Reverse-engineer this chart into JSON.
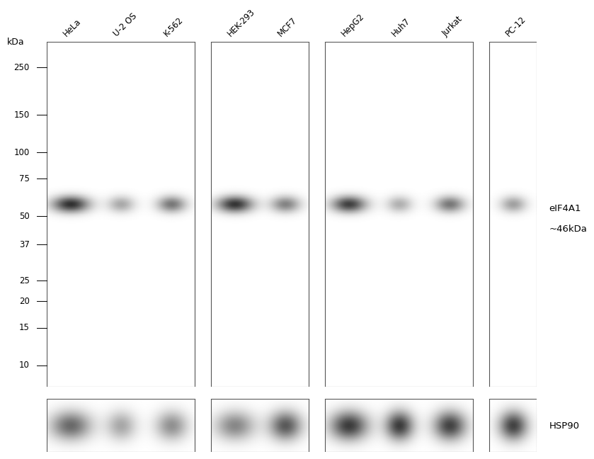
{
  "fig_width": 8.88,
  "fig_height": 7.11,
  "bg_color": "#ffffff",
  "lane_labels": [
    "HeLa",
    "U-2 OS",
    "K-562",
    "HEK-293",
    "MCF7",
    "HepG2",
    "Huh7",
    "Jurkat",
    "PC-12"
  ],
  "kda_markers": [
    250,
    150,
    100,
    75,
    50,
    37,
    25,
    20,
    15,
    10
  ],
  "kda_label": "kDa",
  "main_band_kda": 46,
  "group_configs": [
    {
      "n": 3,
      "lane_names": [
        "HeLa",
        "U-2 OS",
        "K-562"
      ]
    },
    {
      "n": 2,
      "lane_names": [
        "HEK-293",
        "MCF7"
      ]
    },
    {
      "n": 3,
      "lane_names": [
        "HepG2",
        "Huh7",
        "Jurkat"
      ]
    },
    {
      "n": 1,
      "lane_names": [
        "PC-12"
      ]
    }
  ],
  "eif4a1_intensities": [
    0.92,
    0.38,
    0.6,
    0.9,
    0.55,
    0.85,
    0.35,
    0.6,
    0.42
  ],
  "hsp90_intensities": [
    0.65,
    0.38,
    0.48,
    0.52,
    0.72,
    0.85,
    0.85,
    0.82,
    0.82
  ],
  "log_min": 0.9,
  "log_max": 2.52,
  "gel_bg": "#efefef",
  "gel_border": "#555555",
  "annotation_right": "eIF4A1\n~46kDa",
  "hsp90_label": "HSP90"
}
